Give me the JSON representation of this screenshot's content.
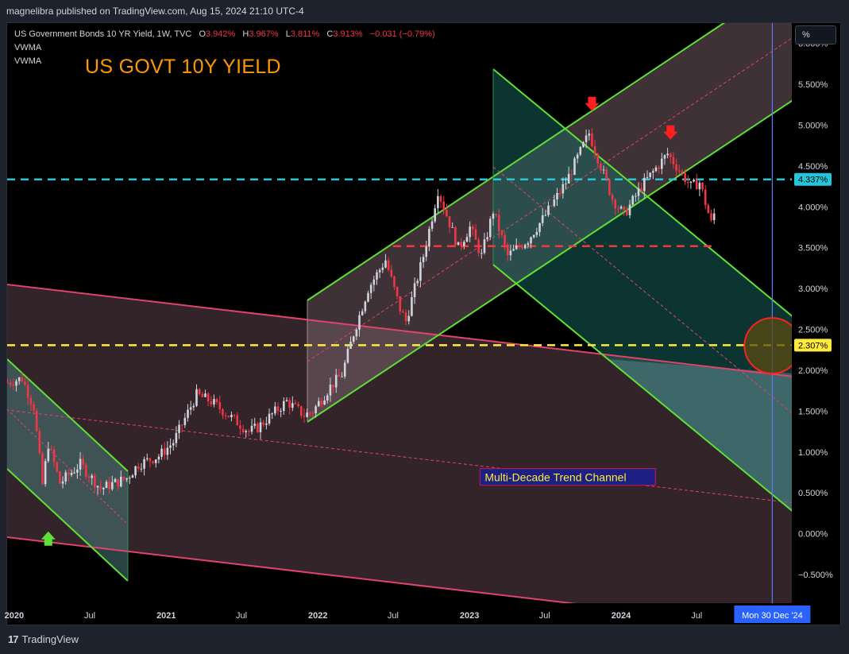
{
  "header": {
    "published": "magnelibra published on TradingView.com, Aug 15, 2024 21:10 UTC-4"
  },
  "legend": {
    "symbol": "US Government Bonds 10 YR Yield, 1W, TVC",
    "open_label": "O",
    "open": "3.942%",
    "high_label": "H",
    "high": "3.967%",
    "low_label": "L",
    "low": "3.811%",
    "close_label": "C",
    "close": "3.913%",
    "change": "−0.031 (−0.79%)",
    "indicators": [
      "VWMA",
      "VWMA"
    ]
  },
  "toolbar": {
    "percent_button": "%"
  },
  "footer": {
    "brand": "TradingView",
    "brand_mark": "17"
  },
  "colors": {
    "up": "#d1d4dc",
    "down": "#f23645",
    "channel_green": "#5ee034",
    "trend_pink": "#e0436b",
    "cyan_level": "#26c6da",
    "yellow_level": "#ffeb3b",
    "red_level": "#f23645",
    "headline": "#ff9800",
    "vline": "#5b7cfa"
  },
  "chart_data": {
    "type": "candlestick",
    "title": "US GOVT 10Y YIELD",
    "y_ticks": [
      "6.000%",
      "5.500%",
      "5.000%",
      "4.500%",
      "4.000%",
      "3.500%",
      "3.000%",
      "2.500%",
      "2.000%",
      "1.500%",
      "1.000%",
      "0.500%",
      "0.000%",
      "−0.500%"
    ],
    "y_tick_values": [
      6,
      5.5,
      5,
      4.5,
      4,
      3.5,
      3,
      2.5,
      2,
      1.5,
      1,
      0.5,
      0,
      -0.5
    ],
    "ylim": [
      -0.85,
      6.25
    ],
    "x_ticks": [
      {
        "label": "2020",
        "date": "2020-01-01"
      },
      {
        "label": "Jul",
        "date": "2020-07-01"
      },
      {
        "label": "2021",
        "date": "2021-01-01"
      },
      {
        "label": "Jul",
        "date": "2021-07-01"
      },
      {
        "label": "2022",
        "date": "2022-01-01"
      },
      {
        "label": "Jul",
        "date": "2022-07-01"
      },
      {
        "label": "2023",
        "date": "2023-01-01"
      },
      {
        "label": "Jul",
        "date": "2023-07-01"
      },
      {
        "label": "2024",
        "date": "2024-01-01"
      },
      {
        "label": "Jul",
        "date": "2024-07-01"
      }
    ],
    "xlim": [
      "2019-12-15",
      "2025-02-15"
    ],
    "x_cursor": {
      "label": "Mon 30 Dec '24",
      "date": "2024-12-30"
    },
    "price_path": [
      [
        "2019-12-16",
        1.85
      ],
      [
        "2020-01-20",
        1.9
      ],
      [
        "2020-02-17",
        1.55
      ],
      [
        "2020-03-09",
        0.6
      ],
      [
        "2020-03-23",
        1.1
      ],
      [
        "2020-04-20",
        0.62
      ],
      [
        "2020-06-08",
        0.85
      ],
      [
        "2020-07-27",
        0.55
      ],
      [
        "2020-09-28",
        0.68
      ],
      [
        "2020-10-26",
        0.85
      ],
      [
        "2020-12-14",
        0.95
      ],
      [
        "2021-01-18",
        1.12
      ],
      [
        "2021-03-15",
        1.7
      ],
      [
        "2021-04-19",
        1.62
      ],
      [
        "2021-07-19",
        1.25
      ],
      [
        "2021-08-09",
        1.3
      ],
      [
        "2021-10-18",
        1.62
      ],
      [
        "2021-11-29",
        1.45
      ],
      [
        "2021-12-20",
        1.5
      ],
      [
        "2022-01-31",
        1.8
      ],
      [
        "2022-02-28",
        1.95
      ],
      [
        "2022-03-28",
        2.45
      ],
      [
        "2022-05-02",
        3.0
      ],
      [
        "2022-06-13",
        3.35
      ],
      [
        "2022-07-18",
        2.75
      ],
      [
        "2022-08-01",
        2.6
      ],
      [
        "2022-09-12",
        3.4
      ],
      [
        "2022-10-17",
        4.2
      ],
      [
        "2022-11-14",
        3.8
      ],
      [
        "2022-12-05",
        3.5
      ],
      [
        "2023-01-02",
        3.75
      ],
      [
        "2023-01-30",
        3.4
      ],
      [
        "2023-02-27",
        3.95
      ],
      [
        "2023-04-03",
        3.4
      ],
      [
        "2023-05-22",
        3.6
      ],
      [
        "2023-07-03",
        3.9
      ],
      [
        "2023-08-21",
        4.3
      ],
      [
        "2023-10-16",
        4.9
      ],
      [
        "2023-11-06",
        4.6
      ],
      [
        "2023-12-11",
        4.1
      ],
      [
        "2024-01-08",
        3.9
      ],
      [
        "2024-02-19",
        4.25
      ],
      [
        "2024-04-22",
        4.65
      ],
      [
        "2024-05-20",
        4.45
      ],
      [
        "2024-06-17",
        4.25
      ],
      [
        "2024-07-08",
        4.3
      ],
      [
        "2024-08-05",
        3.8
      ],
      [
        "2024-08-12",
        3.913
      ]
    ],
    "levels": [
      {
        "name": "resistance",
        "value": 4.337,
        "label": "4.337%",
        "color": "#26c6da"
      },
      {
        "name": "target",
        "value": 2.307,
        "label": "2.307%",
        "color": "#ffeb3b"
      },
      {
        "name": "pivot",
        "value": 3.52,
        "color": "#f23645",
        "from": "2022-07-01",
        "to": "2024-08-12"
      }
    ],
    "annotations": [
      {
        "text": "Multi-Decade Trend Channel",
        "date": "2023-02-01",
        "value": 0.7
      }
    ],
    "markers": [
      {
        "type": "down-arrow",
        "date": "2023-10-23",
        "value": 5.25
      },
      {
        "type": "down-arrow",
        "date": "2024-04-29",
        "value": 4.9
      },
      {
        "type": "up-arrow",
        "date": "2020-03-23",
        "value": -0.05
      }
    ],
    "target_circle": {
      "date": "2024-12-30",
      "value": 2.3
    }
  }
}
